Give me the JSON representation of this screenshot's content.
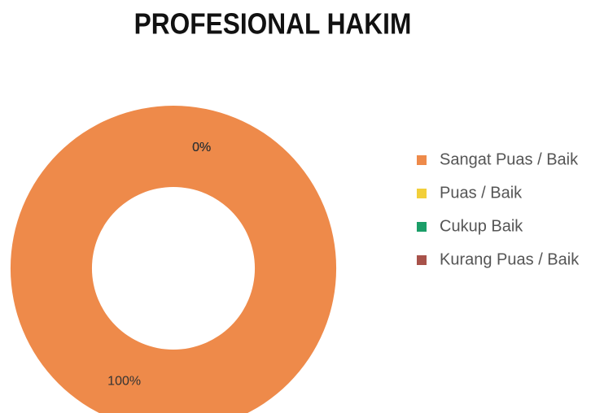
{
  "chart_data": {
    "type": "donut",
    "title": "PROFESIONAL HAKIM",
    "categories": [
      "Sangat Puas / Baik",
      "Puas / Baik",
      "Cukup Baik",
      "Kurang Puas / Baik"
    ],
    "values": [
      100,
      0,
      0,
      0
    ],
    "value_labels": [
      "100%",
      "0%",
      "0%",
      "0%"
    ],
    "colors": [
      "#ee8a4a",
      "#f2cf3a",
      "#1b9e68",
      "#a8524a"
    ],
    "legend": "right"
  }
}
